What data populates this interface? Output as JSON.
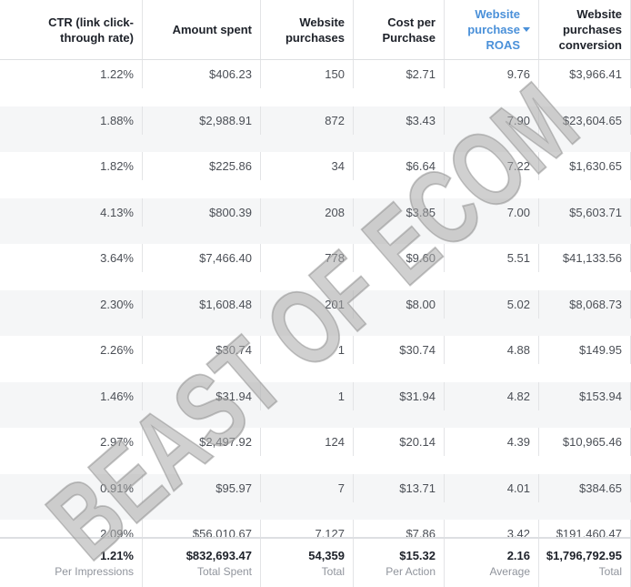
{
  "header": {
    "columns": [
      {
        "label": "CTR (link click-through rate)"
      },
      {
        "label": "Amount spent"
      },
      {
        "label": "Website purchases"
      },
      {
        "label": "Cost per Purchase"
      },
      {
        "label": "Website purchase ROAS",
        "sorted": true
      },
      {
        "label": "Website purchases conversion"
      }
    ]
  },
  "table": {
    "rows": [
      [
        "1.22%",
        "$406.23",
        "150",
        "$2.71",
        "9.76",
        "$3,966.41"
      ],
      [
        "1.88%",
        "$2,988.91",
        "872",
        "$3.43",
        "7.90",
        "$23,604.65"
      ],
      [
        "1.82%",
        "$225.86",
        "34",
        "$6.64",
        "7.22",
        "$1,630.65"
      ],
      [
        "4.13%",
        "$800.39",
        "208",
        "$3.85",
        "7.00",
        "$5,603.71"
      ],
      [
        "3.64%",
        "$7,466.40",
        "778",
        "$9.60",
        "5.51",
        "$41,133.56"
      ],
      [
        "2.30%",
        "$1,608.48",
        "201",
        "$8.00",
        "5.02",
        "$8,068.73"
      ],
      [
        "2.26%",
        "$30.74",
        "1",
        "$30.74",
        "4.88",
        "$149.95"
      ],
      [
        "1.46%",
        "$31.94",
        "1",
        "$31.94",
        "4.82",
        "$153.94"
      ],
      [
        "2.97%",
        "$2,497.92",
        "124",
        "$20.14",
        "4.39",
        "$10,965.46"
      ],
      [
        "0.91%",
        "$95.97",
        "7",
        "$13.71",
        "4.01",
        "$384.65"
      ],
      [
        "2.09%",
        "$56,010.67",
        "7,127",
        "$7.86",
        "3.42",
        "$191,460.47"
      ]
    ]
  },
  "footer": [
    {
      "value": "1.21%",
      "label": "Per Impressions"
    },
    {
      "value": "$832,693.47",
      "label": "Total Spent"
    },
    {
      "value": "54,359",
      "label": "Total"
    },
    {
      "value": "$15.32",
      "label": "Per Action"
    },
    {
      "value": "2.16",
      "label": "Average"
    },
    {
      "value": "$1,796,792.95",
      "label": "Total"
    }
  ],
  "watermark": "BEAST OF ECOM"
}
